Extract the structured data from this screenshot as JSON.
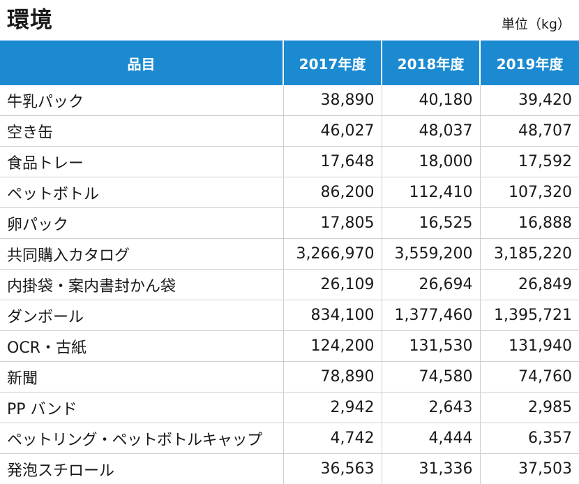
{
  "title": "環境",
  "unit": "単位（kg）",
  "table": {
    "headers": [
      "品目",
      "2017年度",
      "2018年度",
      "2019年度"
    ],
    "rows": [
      [
        "牛乳パック",
        "38,890",
        "40,180",
        "39,420"
      ],
      [
        "空き缶",
        "46,027",
        "48,037",
        "48,707"
      ],
      [
        "食品トレー",
        "17,648",
        "18,000",
        "17,592"
      ],
      [
        "ペットボトル",
        "86,200",
        "112,410",
        "107,320"
      ],
      [
        "卵パック",
        "17,805",
        "16,525",
        "16,888"
      ],
      [
        "共同購入カタログ",
        "3,266,970",
        "3,559,200",
        "3,185,220"
      ],
      [
        "内掛袋・案内書封かん袋",
        "26,109",
        "26,694",
        "26,849"
      ],
      [
        "ダンボール",
        "834,100",
        "1,377,460",
        "1,395,721"
      ],
      [
        "OCR・古紙",
        "124,200",
        "131,530",
        "131,940"
      ],
      [
        "新聞",
        "78,890",
        "74,580",
        "74,760"
      ],
      [
        "PP バンド",
        "2,942",
        "2,643",
        "2,985"
      ],
      [
        "ペットリング・ペットボトルキャップ",
        "4,742",
        "4,444",
        "6,357"
      ],
      [
        "発泡スチロール",
        "36,563",
        "31,336",
        "37,503"
      ]
    ]
  },
  "colors": {
    "header_bg": "#1b8ad1",
    "header_text": "#ffffff",
    "grid": "#cfcfcf"
  }
}
